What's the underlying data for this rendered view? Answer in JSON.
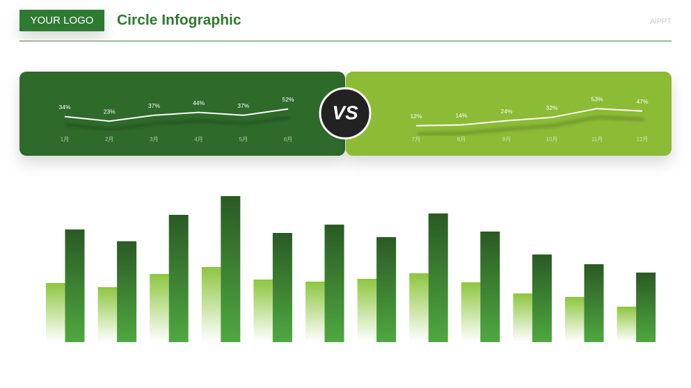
{
  "header": {
    "logo": "YOUR LOGO",
    "title": "Circle Infographic",
    "watermark": "AiPPT"
  },
  "vs_label": "VS",
  "chart_data": [
    {
      "type": "line",
      "categories": [
        "1月",
        "2月",
        "3月",
        "4月",
        "5月",
        "6月"
      ],
      "values": [
        34,
        23,
        37,
        44,
        37,
        52
      ],
      "value_labels": [
        "34%",
        "23%",
        "37%",
        "44%",
        "37%",
        "52%"
      ],
      "color": "#ffffff",
      "background": "#2e6b2c",
      "ylim": [
        -20,
        80
      ]
    },
    {
      "type": "line",
      "categories": [
        "7月",
        "8月",
        "9月",
        "10月",
        "11月",
        "12月"
      ],
      "values": [
        12,
        14,
        24,
        32,
        53,
        47
      ],
      "value_labels": [
        "12%",
        "14%",
        "24%",
        "32%",
        "53%",
        "47%"
      ],
      "color": "#ffffff",
      "background": "#8cbb36",
      "ylim": [
        -20,
        80
      ]
    },
    {
      "type": "bar",
      "categories": [
        null,
        null,
        null,
        null,
        null,
        null,
        null,
        null,
        null,
        null,
        null,
        null
      ],
      "series": [
        {
          "color": "#8dc63f",
          "values": [
            85,
            79,
            98,
            108,
            90,
            87,
            91,
            99,
            86,
            70,
            65,
            51
          ]
        },
        {
          "color": "#2a5a24",
          "values": [
            162,
            145,
            183,
            210,
            157,
            169,
            151,
            185,
            159,
            126,
            112,
            100
          ]
        }
      ],
      "ylim": [
        0,
        220
      ]
    }
  ]
}
